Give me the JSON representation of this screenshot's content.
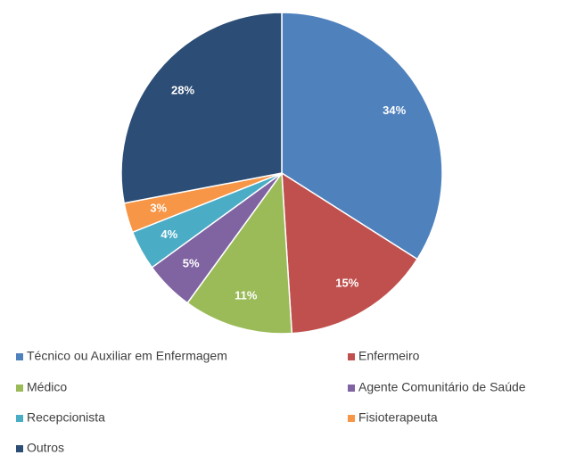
{
  "chart_data": {
    "type": "pie",
    "categories": [
      "Técnico ou Auxiliar em Enfermagem",
      "Enfermeiro",
      "Médico",
      "Agente Comunitário de Saúde",
      "Recepcionista",
      "Fisioterapeuta",
      "Outros"
    ],
    "values": [
      34,
      15,
      11,
      5,
      4,
      3,
      28
    ],
    "value_labels": [
      "34%",
      "15%",
      "11%",
      "5%",
      "4%",
      "3%",
      "28%"
    ],
    "colors": [
      "#4f81bd",
      "#c0504d",
      "#9bbb59",
      "#8064a2",
      "#4bacc6",
      "#f79646",
      "#2c4d75"
    ],
    "legend": "bottom"
  }
}
